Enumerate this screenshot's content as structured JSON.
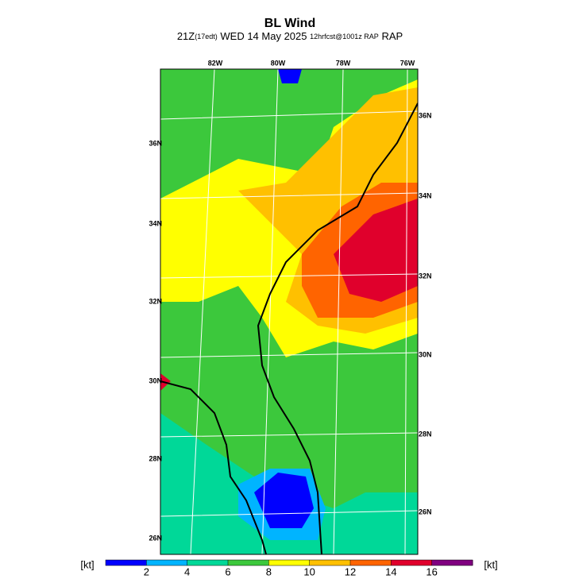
{
  "header": {
    "title": "BL Wind",
    "valid": "21Z",
    "local": "(17edt)",
    "date": "WED 14 May 2025",
    "run": "12hrfcst@1001z RAP"
  },
  "map": {
    "lon_labels": [
      "82W",
      "80W",
      "78W",
      "76W"
    ],
    "lat_labels_right": [
      "36N",
      "34N",
      "32N",
      "30N",
      "28N",
      "26N"
    ],
    "lat_labels_left": [
      "36N",
      "34N",
      "32N",
      "30N",
      "28N",
      "26N"
    ]
  },
  "colorbar": {
    "unit": "[kt]",
    "lim": [
      0,
      18
    ],
    "ticks": [
      2,
      4,
      6,
      8,
      10,
      12,
      14,
      16
    ],
    "colors": [
      "#0000ff",
      "#00b4ff",
      "#00d898",
      "#3cc83c",
      "#ffff00",
      "#ffc000",
      "#ff6400",
      "#e0002c",
      "#800080"
    ]
  }
}
